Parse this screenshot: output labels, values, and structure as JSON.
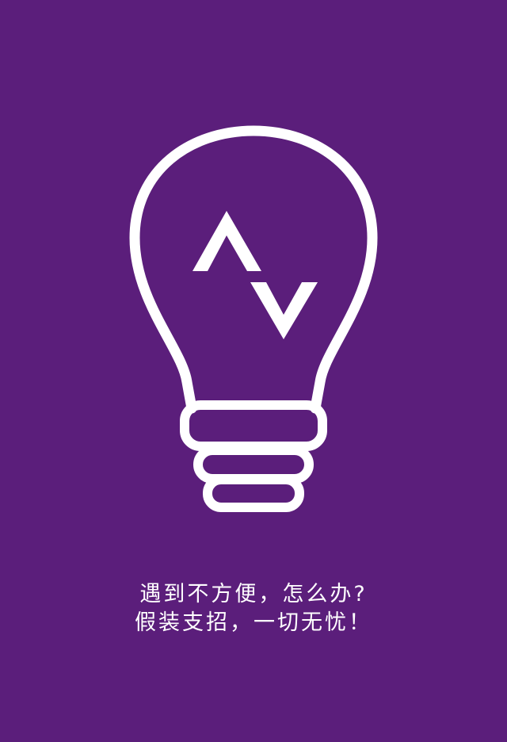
{
  "screen": {
    "background_color": "#5b1e7b",
    "foreground_color": "#ffffff"
  },
  "logo": {
    "icon": "lightbulb-icon",
    "inner_mark_icon": "up-down-chevrons-icon"
  },
  "caption": {
    "line1": "遇到不方便，怎么办?",
    "line2": "假装支招，一切无忧！"
  }
}
